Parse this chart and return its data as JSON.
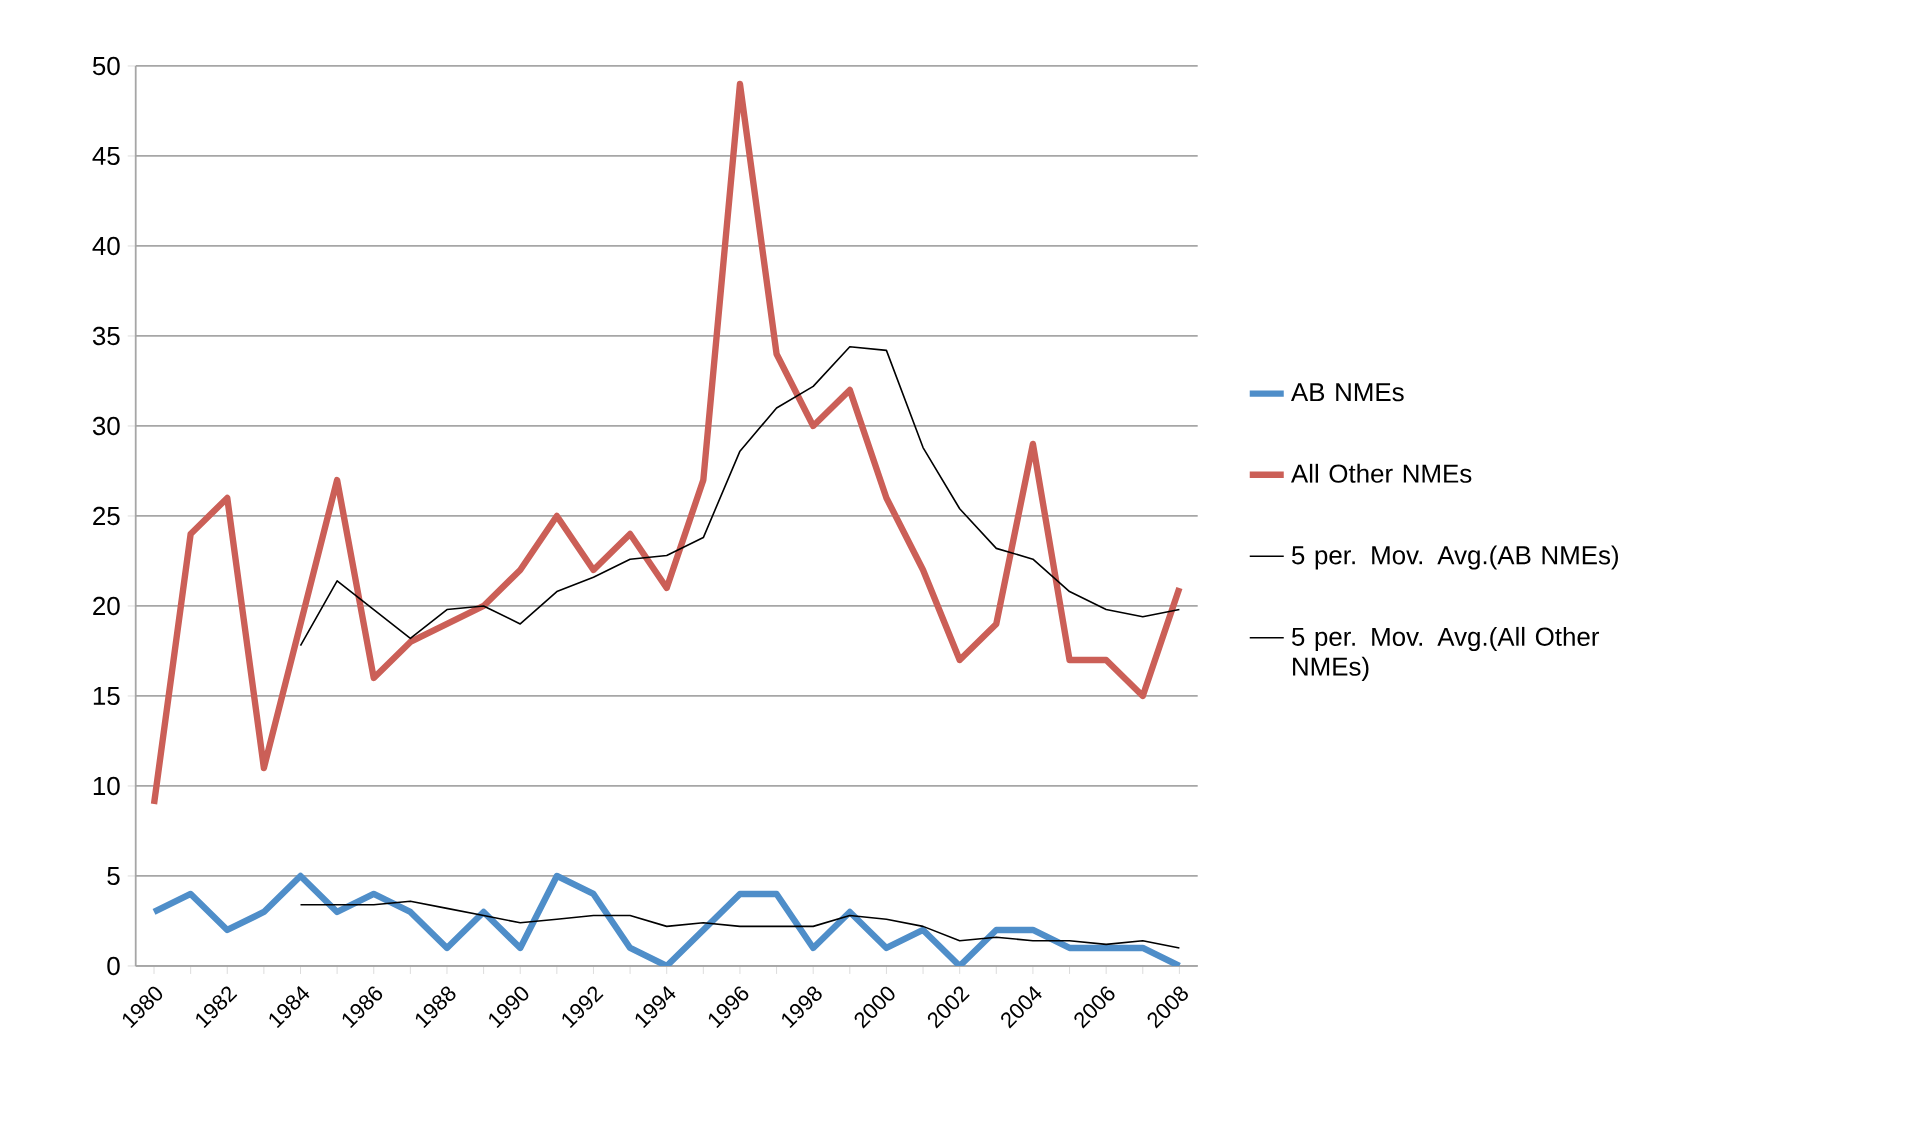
{
  "chart_data": {
    "type": "line",
    "categories": [
      "1980",
      null,
      "1982",
      null,
      "1984",
      null,
      "1986",
      null,
      "1988",
      null,
      "1990",
      null,
      "1992",
      null,
      "1994",
      null,
      "1996",
      null,
      "1998",
      null,
      "2000",
      null,
      "2002",
      null,
      "2004",
      null,
      "2006",
      null,
      "2008"
    ],
    "series": [
      {
        "name": "AB NMEs",
        "color": "#4f8ec9",
        "values": [
          3,
          4,
          2,
          3,
          5,
          3,
          4,
          3,
          1,
          3,
          1,
          5,
          4,
          1,
          0,
          2,
          4,
          4,
          1,
          3,
          1,
          2,
          0,
          2,
          2,
          1,
          1,
          1,
          0
        ]
      },
      {
        "name": "All Other NMEs",
        "color": "#cb5f57",
        "values": [
          9,
          24,
          26,
          11,
          19,
          27,
          16,
          18,
          19,
          20,
          22,
          25,
          22,
          24,
          21,
          27,
          49,
          34,
          30,
          32,
          26,
          22,
          17,
          19,
          29,
          17,
          17,
          15,
          21
        ]
      },
      {
        "name": "5 per. Mov. Avg.(AB NMEs)",
        "color": "#000000",
        "values": [
          null,
          null,
          null,
          null,
          3.4,
          3.4,
          3.4,
          3.6,
          3.2,
          2.8,
          2.4,
          2.6,
          2.8,
          2.8,
          2.2,
          2.4,
          2.2,
          2.2,
          2.2,
          2.8,
          2.6,
          2.2,
          1.4,
          1.6,
          1.4,
          1.4,
          1.2,
          1.4,
          1.0
        ]
      },
      {
        "name": "5 per. Mov. Avg.(All Other NMEs)",
        "color": "#000000",
        "values": [
          null,
          null,
          null,
          null,
          17.8,
          21.4,
          19.8,
          18.2,
          19.8,
          20,
          19,
          20.8,
          21.6,
          22.6,
          22.8,
          23.8,
          28.6,
          31,
          32.2,
          34.4,
          34.2,
          28.8,
          25.4,
          23.2,
          22.6,
          20.8,
          19.8,
          19.4,
          19.8
        ]
      }
    ],
    "ylim": [
      0,
      50
    ],
    "yticks": [
      0,
      5,
      10,
      15,
      20,
      25,
      30,
      35,
      40,
      45,
      50
    ],
    "grid": "y",
    "legend": "right",
    "marker": "none",
    "line_style": "solid"
  }
}
